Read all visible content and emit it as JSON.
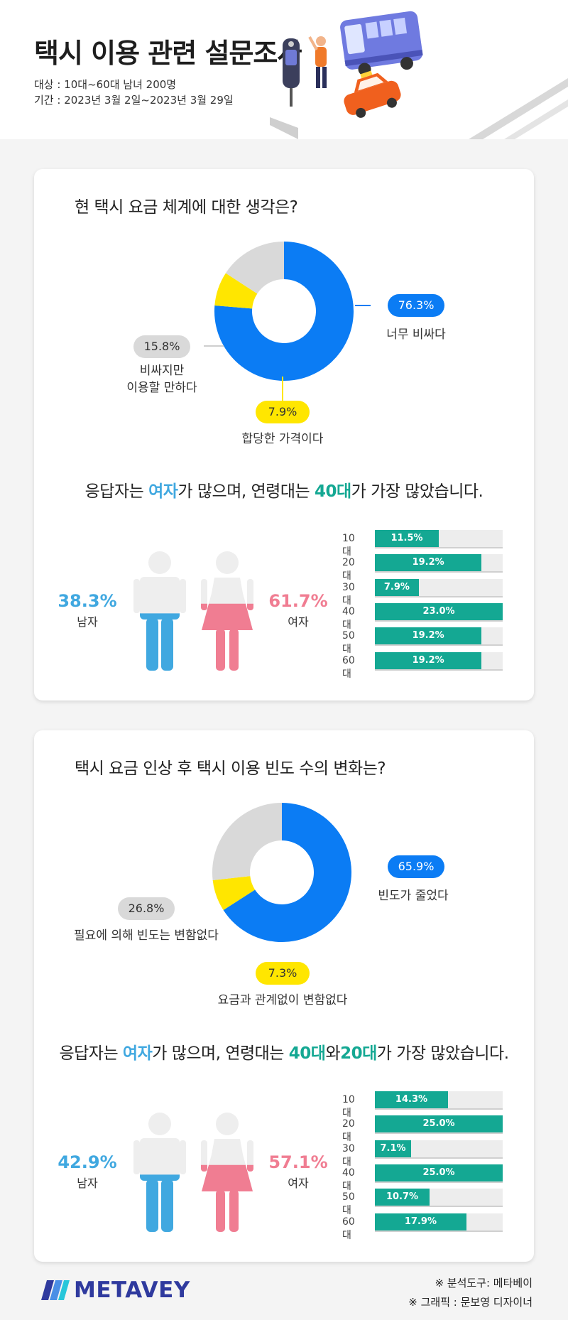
{
  "header": {
    "title": "택시 이용 관련 설문조사",
    "target": "대상 : 10대~60대 남녀 200명",
    "period": "기간 : 2023년 3월 2일~2023년 3월 29일"
  },
  "survey1": {
    "question": "현 택시 요금 체계에 대한 생각은?",
    "summary_parts": [
      "응답자는 ",
      "여자",
      "가 많으며, 연령대는 ",
      "40대",
      "가 가장 많았습니다."
    ],
    "slices": [
      {
        "label": "너무 비싸다",
        "pct_text": "76.3%",
        "value": 76.3,
        "color": "#0b7cf4"
      },
      {
        "label": "합당한 가격이다",
        "pct_text": "7.9%",
        "value": 7.9,
        "color": "#ffe600"
      },
      {
        "label": "비싸지만\n이용할 만하다",
        "pct_text": "15.8%",
        "value": 15.8,
        "color": "#d9d9d9"
      }
    ],
    "gender": {
      "male_pct": "38.3%",
      "male_label": "남자",
      "male_value": 38.3,
      "female_pct": "61.7%",
      "female_label": "여자",
      "female_value": 61.7
    },
    "ages": [
      {
        "label": "10대",
        "pct_text": "11.5%",
        "value": 11.5
      },
      {
        "label": "20대",
        "pct_text": "19.2%",
        "value": 19.2
      },
      {
        "label": "30대",
        "pct_text": "7.9%",
        "value": 7.9
      },
      {
        "label": "40대",
        "pct_text": "23.0%",
        "value": 23.0
      },
      {
        "label": "50대",
        "pct_text": "19.2%",
        "value": 19.2
      },
      {
        "label": "60대",
        "pct_text": "19.2%",
        "value": 19.2
      }
    ]
  },
  "survey2": {
    "question": "택시 요금 인상 후 택시 이용 빈도 수의 변화는?",
    "summary_parts": [
      "응답자는 ",
      "여자",
      "가 많으며, 연령대는 ",
      "40대",
      "와",
      "20대",
      "가 가장 많았습니다."
    ],
    "slices": [
      {
        "label": "빈도가 줄었다",
        "pct_text": "65.9%",
        "value": 65.9,
        "color": "#0b7cf4"
      },
      {
        "label": "요금과 관계없이 변함없다",
        "pct_text": "7.3%",
        "value": 7.3,
        "color": "#ffe600"
      },
      {
        "label": "필요에 의해 빈도는 변함없다",
        "pct_text": "26.8%",
        "value": 26.8,
        "color": "#d9d9d9"
      }
    ],
    "gender": {
      "male_pct": "42.9%",
      "male_label": "남자",
      "male_value": 42.9,
      "female_pct": "57.1%",
      "female_label": "여자",
      "female_value": 57.1
    },
    "ages": [
      {
        "label": "10대",
        "pct_text": "14.3%",
        "value": 14.3
      },
      {
        "label": "20대",
        "pct_text": "25.0%",
        "value": 25.0
      },
      {
        "label": "30대",
        "pct_text": "7.1%",
        "value": 7.1
      },
      {
        "label": "40대",
        "pct_text": "25.0%",
        "value": 25.0
      },
      {
        "label": "50대",
        "pct_text": "10.7%",
        "value": 10.7
      },
      {
        "label": "60대",
        "pct_text": "17.9%",
        "value": 17.9
      }
    ]
  },
  "footer": {
    "logo_text": "METAVEY",
    "tool_note": "※ 분석도구: 메타베이",
    "graphic_note": "※ 그래픽 : 문보영 디자이너"
  },
  "colors": {
    "blue": "#0b7cf4",
    "yellow": "#ffe600",
    "gray": "#d9d9d9",
    "teal": "#14a893",
    "male": "#40a8e0",
    "female": "#f07d92"
  },
  "chart_data": [
    {
      "type": "pie",
      "title": "현 택시 요금 체계에 대한 생각은?",
      "categories": [
        "너무 비싸다",
        "합당한 가격이다",
        "비싸지만 이용할 만하다"
      ],
      "values": [
        76.3,
        7.9,
        15.8
      ]
    },
    {
      "type": "bar",
      "categories": [
        "10대",
        "20대",
        "30대",
        "40대",
        "50대",
        "60대"
      ],
      "values": [
        11.5,
        19.2,
        7.9,
        23.0,
        19.2,
        19.2
      ]
    },
    {
      "type": "pie",
      "title": "택시 요금 인상 후 택시 이용 빈도 수의 변화는?",
      "categories": [
        "빈도가 줄었다",
        "요금과 관계없이 변함없다",
        "필요에 의해 빈도는 변함없다"
      ],
      "values": [
        65.9,
        7.3,
        26.8
      ]
    },
    {
      "type": "bar",
      "categories": [
        "10대",
        "20대",
        "30대",
        "40대",
        "50대",
        "60대"
      ],
      "values": [
        14.3,
        25.0,
        7.1,
        25.0,
        10.7,
        17.9
      ]
    }
  ]
}
